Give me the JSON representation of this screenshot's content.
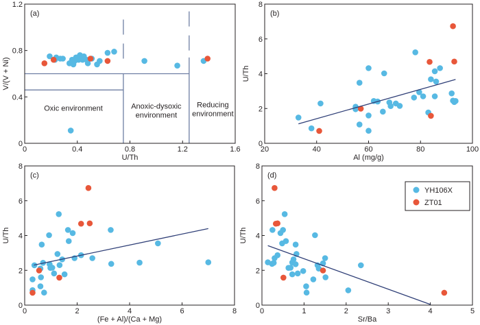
{
  "colors": {
    "YH106X": "#57b9e3",
    "ZT01": "#e8573a",
    "boundary": "#6e7ea3",
    "trend": "#2f3f77"
  },
  "legend": {
    "placement": "top-right of panel (d)",
    "entries": [
      {
        "name": "YH106X",
        "color": "#57b9e3"
      },
      {
        "name": "ZT01",
        "color": "#e8573a"
      }
    ]
  },
  "chart_data": [
    {
      "id": "a",
      "type": "scatter",
      "panel_label": "(a)",
      "xlabel": "U/Th",
      "ylabel": "V/(V + Ni)",
      "xlim": [
        0,
        1.6
      ],
      "ylim": [
        0,
        1.2
      ],
      "xticks": [
        0,
        0.4,
        0.8,
        1.2,
        1.6
      ],
      "xtick_labels": [
        "0",
        "0.4",
        "0.8",
        "1.2",
        "1.6"
      ],
      "yticks": [
        0,
        0.4,
        0.8,
        1.2
      ],
      "ytick_labels": [
        "0",
        "0.4",
        "0.8",
        "1.2"
      ],
      "regions": [
        {
          "label": [
            "Oxic environment"
          ],
          "x": 0.37,
          "y": 0.28
        },
        {
          "label": [
            "Anoxic-dysoxic",
            "environment"
          ],
          "x": 1.0,
          "y": 0.3
        },
        {
          "label": [
            "Reducing",
            "environment"
          ],
          "x": 1.43,
          "y": 0.31
        }
      ],
      "boundaries": [
        {
          "type": "solid",
          "x": [
            0,
            1.25
          ],
          "y": [
            0.6,
            0.6
          ]
        },
        {
          "type": "solid",
          "x": [
            0,
            0.75
          ],
          "y": [
            0.46,
            0.46
          ]
        },
        {
          "type": "solid",
          "x": [
            0.75,
            0.75
          ],
          "y": [
            0,
            0.6
          ]
        },
        {
          "type": "solid",
          "x": [
            1.25,
            1.25
          ],
          "y": [
            0,
            0.74
          ]
        },
        {
          "type": "dashed",
          "x": [
            0.75,
            0.75
          ],
          "y": [
            0.73,
            1.12
          ]
        },
        {
          "type": "dashed",
          "x": [
            1.25,
            1.25
          ],
          "y": [
            0.8,
            1.2
          ]
        }
      ],
      "series": [
        {
          "name": "YH106X",
          "points": [
            [
              0.19,
              0.75
            ],
            [
              0.23,
              0.72
            ],
            [
              0.24,
              0.74
            ],
            [
              0.27,
              0.73
            ],
            [
              0.29,
              0.73
            ],
            [
              0.34,
              0.69
            ],
            [
              0.37,
              0.68
            ],
            [
              0.38,
              0.71
            ],
            [
              0.39,
              0.74
            ],
            [
              0.41,
              0.72
            ],
            [
              0.42,
              0.76
            ],
            [
              0.43,
              0.74
            ],
            [
              0.44,
              0.72
            ],
            [
              0.45,
              0.75
            ],
            [
              0.47,
              0.72
            ],
            [
              0.48,
              0.69
            ],
            [
              0.51,
              0.73
            ],
            [
              0.55,
              0.68
            ],
            [
              0.57,
              0.71
            ],
            [
              0.63,
              0.78
            ],
            [
              0.68,
              0.79
            ],
            [
              0.91,
              0.71
            ],
            [
              1.16,
              0.67
            ],
            [
              1.36,
              0.71
            ],
            [
              0.35,
              0.11
            ],
            [
              0.4,
              0.73
            ],
            [
              0.36,
              0.72
            ]
          ]
        },
        {
          "name": "ZT01",
          "points": [
            [
              0.15,
              0.69
            ],
            [
              0.22,
              0.72
            ],
            [
              0.5,
              0.73
            ],
            [
              0.63,
              0.71
            ],
            [
              1.39,
              0.73
            ]
          ]
        }
      ]
    },
    {
      "id": "b",
      "type": "scatter",
      "panel_label": "(b)",
      "xlabel": "Al (mg/g)",
      "ylabel": "U/Th",
      "xlim": [
        20,
        100
      ],
      "ylim": [
        0,
        8
      ],
      "xticks": [
        20,
        40,
        60,
        80,
        100
      ],
      "xtick_labels": [
        "20",
        "40",
        "60",
        "80",
        "100"
      ],
      "yticks": [
        0,
        2,
        4,
        6,
        8
      ],
      "ytick_labels": [
        "0",
        "2",
        "4",
        "6",
        "8"
      ],
      "trendline": {
        "x": [
          33,
          93.5
        ],
        "y": [
          1.12,
          3.67
        ]
      },
      "series": [
        {
          "name": "YH106X",
          "points": [
            [
              33,
              1.48
            ],
            [
              38,
              0.86
            ],
            [
              41.5,
              2.29
            ],
            [
              55,
              2.1
            ],
            [
              55,
              1.96
            ],
            [
              56.5,
              3.48
            ],
            [
              56.5,
              1.08
            ],
            [
              60,
              4.32
            ],
            [
              60,
              1.6
            ],
            [
              60,
              0.72
            ],
            [
              62,
              2.43
            ],
            [
              63.5,
              2.4
            ],
            [
              65.5,
              1.82
            ],
            [
              66,
              4.02
            ],
            [
              68,
              2.35
            ],
            [
              68.5,
              2.14
            ],
            [
              70.5,
              2.29
            ],
            [
              72,
              2.15
            ],
            [
              77.5,
              2.63
            ],
            [
              78,
              5.23
            ],
            [
              79.5,
              2.94
            ],
            [
              81,
              2.7
            ],
            [
              83,
              1.77
            ],
            [
              84,
              3.68
            ],
            [
              85.5,
              4.14
            ],
            [
              86,
              3.55
            ],
            [
              85.5,
              2.7
            ],
            [
              87.5,
              4.32
            ],
            [
              92,
              2.87
            ],
            [
              92.5,
              2.45
            ],
            [
              93,
              2.37
            ],
            [
              93.5,
              2.43
            ]
          ]
        },
        {
          "name": "ZT01",
          "points": [
            [
              41,
              0.71
            ],
            [
              57,
              1.99
            ],
            [
              83.5,
              4.68
            ],
            [
              84,
              1.58
            ],
            [
              92.5,
              6.73
            ],
            [
              93,
              4.7
            ]
          ]
        }
      ]
    },
    {
      "id": "c",
      "type": "scatter",
      "panel_label": "(c)",
      "xlabel": "(Fe + Al)/(Ca + Mg)",
      "ylabel": "U/Th",
      "xlim": [
        0,
        8
      ],
      "ylim": [
        0,
        8
      ],
      "xticks": [
        0,
        2,
        4,
        6,
        8
      ],
      "xtick_labels": [
        "0",
        "2",
        "4",
        "6",
        "8"
      ],
      "yticks": [
        0,
        2,
        4,
        6,
        8
      ],
      "ytick_labels": [
        "0",
        "2",
        "4",
        "6",
        "8"
      ],
      "trendline": {
        "x": [
          0.35,
          7.0
        ],
        "y": [
          2.3,
          4.4
        ]
      },
      "series": [
        {
          "name": "YH106X",
          "points": [
            [
              0.3,
              1.48
            ],
            [
              0.3,
              0.86
            ],
            [
              0.37,
              2.29
            ],
            [
              0.6,
              2.1
            ],
            [
              0.62,
              1.6
            ],
            [
              0.6,
              1.08
            ],
            [
              0.65,
              3.48
            ],
            [
              0.7,
              2.43
            ],
            [
              0.74,
              0.72
            ],
            [
              0.93,
              4.02
            ],
            [
              0.95,
              2.35
            ],
            [
              0.98,
              2.14
            ],
            [
              1.05,
              2.15
            ],
            [
              1.12,
              1.82
            ],
            [
              1.25,
              2.94
            ],
            [
              1.3,
              5.23
            ],
            [
              1.33,
              2.3
            ],
            [
              1.43,
              2.63
            ],
            [
              1.52,
              1.77
            ],
            [
              1.65,
              4.32
            ],
            [
              1.68,
              3.68
            ],
            [
              1.83,
              4.14
            ],
            [
              1.9,
              2.7
            ],
            [
              2.15,
              2.87
            ],
            [
              2.58,
              2.7
            ],
            [
              3.28,
              4.32
            ],
            [
              3.3,
              2.37
            ],
            [
              4.38,
              2.44
            ],
            [
              5.08,
              3.55
            ],
            [
              7.0,
              2.46
            ]
          ]
        },
        {
          "name": "ZT01",
          "points": [
            [
              0.3,
              0.71
            ],
            [
              0.55,
              1.99
            ],
            [
              1.32,
              1.58
            ],
            [
              2.15,
              4.68
            ],
            [
              2.43,
              6.73
            ],
            [
              2.48,
              4.7
            ]
          ]
        }
      ]
    },
    {
      "id": "d",
      "type": "scatter",
      "panel_label": "(d)",
      "xlabel": "Sr/Ba",
      "ylabel": "U/Th",
      "xlim": [
        0,
        5
      ],
      "ylim": [
        0,
        8
      ],
      "xticks": [
        0,
        1,
        2,
        3,
        4,
        5
      ],
      "xtick_labels": [
        "0",
        "1",
        "2",
        "3",
        "4",
        "5"
      ],
      "yticks": [
        0,
        2,
        4,
        6,
        8
      ],
      "ytick_labels": [
        "0",
        "2",
        "4",
        "6",
        "8"
      ],
      "trendline": {
        "x": [
          0.14,
          4.0
        ],
        "y": [
          3.42,
          0.04
        ]
      },
      "series": [
        {
          "name": "YH106X",
          "points": [
            [
              0.14,
              2.46
            ],
            [
              0.24,
              2.37
            ],
            [
              0.25,
              4.32
            ],
            [
              0.28,
              2.43
            ],
            [
              0.3,
              2.7
            ],
            [
              0.37,
              2.87
            ],
            [
              0.44,
              4.14
            ],
            [
              0.48,
              3.55
            ],
            [
              0.5,
              4.32
            ],
            [
              0.54,
              5.23
            ],
            [
              0.57,
              3.68
            ],
            [
              0.63,
              2.14
            ],
            [
              0.68,
              2.15
            ],
            [
              0.72,
              1.77
            ],
            [
              0.72,
              2.45
            ],
            [
              0.75,
              2.63
            ],
            [
              0.8,
              2.35
            ],
            [
              0.8,
              3.48
            ],
            [
              0.82,
              2.94
            ],
            [
              0.85,
              1.82
            ],
            [
              0.98,
              1.96
            ],
            [
              1.05,
              1.08
            ],
            [
              1.06,
              0.72
            ],
            [
              1.22,
              1.48
            ],
            [
              1.26,
              4.02
            ],
            [
              1.32,
              2.29
            ],
            [
              1.35,
              2.1
            ],
            [
              1.45,
              2.4
            ],
            [
              1.5,
              2.7
            ],
            [
              1.51,
              1.6
            ],
            [
              2.05,
              0.85
            ],
            [
              2.35,
              2.29
            ]
          ]
        },
        {
          "name": "ZT01",
          "points": [
            [
              0.3,
              6.73
            ],
            [
              0.33,
              4.68
            ],
            [
              0.37,
              4.7
            ],
            [
              0.51,
              1.58
            ],
            [
              1.45,
              1.99
            ],
            [
              4.33,
              0.71
            ]
          ]
        }
      ]
    }
  ]
}
